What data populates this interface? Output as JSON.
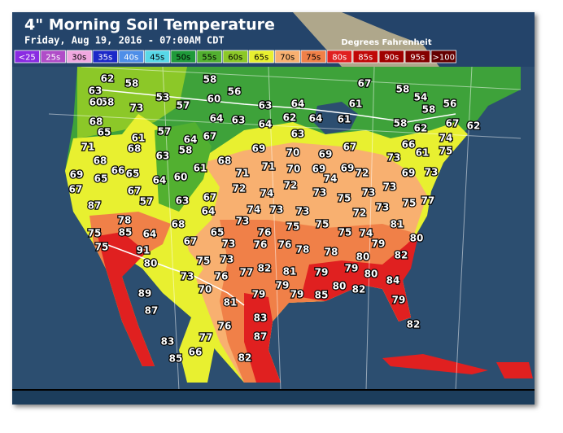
{
  "header": {
    "title": "4\" Morning Soil Temperature",
    "subtitle": "Friday, Aug 19, 2016 - 07:00AM CDT",
    "units": "Degrees Fahrenheit"
  },
  "legend": [
    {
      "label": "<25",
      "color": "#8a2be2"
    },
    {
      "label": "25s",
      "color": "#b04cc8"
    },
    {
      "label": "30s",
      "color": "#f0a8e0"
    },
    {
      "label": "35s",
      "color": "#1c28c8"
    },
    {
      "label": "40s",
      "color": "#4e8ee8"
    },
    {
      "label": "45s",
      "color": "#58d8e8"
    },
    {
      "label": "50s",
      "color": "#1f9a3a"
    },
    {
      "label": "55s",
      "color": "#52b030"
    },
    {
      "label": "60s",
      "color": "#8cc828"
    },
    {
      "label": "65s",
      "color": "#e8f030"
    },
    {
      "label": "70s",
      "color": "#f8b070"
    },
    {
      "label": "75s",
      "color": "#f08048"
    },
    {
      "label": "80s",
      "color": "#e02020"
    },
    {
      "label": "85s",
      "color": "#c00808"
    },
    {
      "label": "90s",
      "color": "#a00000"
    },
    {
      "label": "95s",
      "color": "#840000"
    },
    {
      "label": ">100",
      "color": "#640000"
    }
  ],
  "stations": [
    63,
    62,
    58,
    58,
    67,
    58,
    54,
    58,
    60,
    73,
    53,
    57,
    60,
    56,
    63,
    64,
    61,
    58,
    56,
    68,
    65,
    61,
    57,
    64,
    67,
    64,
    63,
    64,
    62,
    64,
    61,
    58,
    62,
    67,
    62,
    71,
    68,
    63,
    58,
    69,
    70,
    63,
    69,
    67,
    66,
    61,
    74,
    75,
    68,
    66,
    65,
    69,
    65,
    64,
    60,
    61,
    68,
    71,
    71,
    70,
    69,
    74,
    69,
    72,
    73,
    69,
    73,
    67,
    67,
    57,
    63,
    67,
    72,
    74,
    72,
    73,
    75,
    73,
    73,
    75,
    77,
    87,
    64,
    74,
    73,
    73,
    72,
    73,
    73,
    78,
    68,
    75,
    75,
    76,
    75,
    85,
    64,
    65,
    75,
    74,
    81,
    80,
    75,
    91,
    67,
    73,
    76,
    76,
    78,
    78,
    79,
    80,
    82,
    80,
    75,
    73,
    77,
    82,
    81,
    79,
    79,
    80,
    73,
    76,
    79,
    84,
    89,
    70,
    79,
    79,
    85,
    80,
    82,
    79,
    81,
    87,
    83,
    76,
    82,
    77,
    87,
    83,
    66,
    85,
    82
  ]
}
